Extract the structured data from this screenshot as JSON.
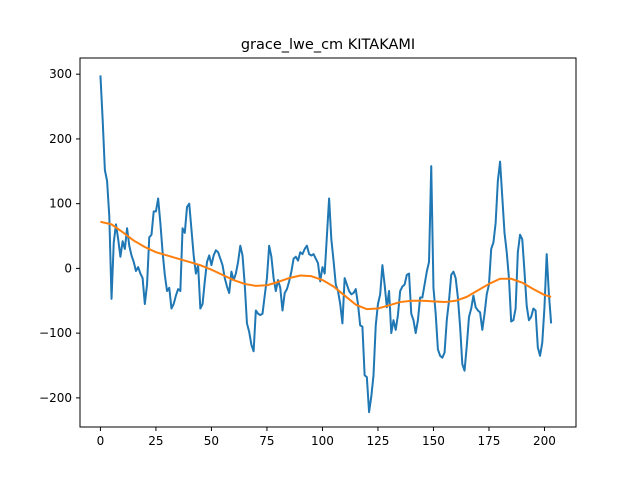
{
  "chart_data": {
    "type": "line",
    "title": "grace_lwe_cm KITAKAMI",
    "xlabel": "",
    "ylabel": "",
    "xlim": [
      -9.2,
      214.2
    ],
    "ylim": [
      -245,
      325
    ],
    "grid": false,
    "legend": "none",
    "x_ticks": [
      0,
      25,
      50,
      75,
      100,
      125,
      150,
      175,
      200
    ],
    "y_ticks": [
      -200,
      -100,
      0,
      100,
      200,
      300
    ],
    "series": [
      {
        "color": "#1f77b4",
        "x": [
          0,
          1,
          2,
          3,
          4,
          5,
          6,
          7,
          8,
          9,
          10,
          11,
          12,
          13,
          14,
          15,
          16,
          17,
          18,
          19,
          20,
          21,
          22,
          23,
          24,
          25,
          26,
          27,
          28,
          29,
          30,
          31,
          32,
          33,
          34,
          35,
          36,
          37,
          38,
          39,
          40,
          41,
          42,
          43,
          44,
          45,
          46,
          47,
          48,
          49,
          50,
          51,
          52,
          53,
          54,
          55,
          56,
          57,
          58,
          59,
          60,
          61,
          62,
          63,
          64,
          65,
          66,
          67,
          68,
          69,
          70,
          71,
          72,
          73,
          74,
          75,
          76,
          77,
          78,
          79,
          80,
          81,
          82,
          83,
          84,
          85,
          86,
          87,
          88,
          89,
          90,
          91,
          92,
          93,
          94,
          95,
          96,
          97,
          98,
          99,
          100,
          101,
          102,
          103,
          104,
          105,
          106,
          107,
          108,
          109,
          110,
          111,
          112,
          113,
          114,
          115,
          116,
          117,
          118,
          119,
          120,
          121,
          122,
          123,
          124,
          125,
          126,
          127,
          128,
          129,
          130,
          131,
          132,
          133,
          134,
          135,
          136,
          137,
          138,
          139,
          140,
          141,
          142,
          143,
          144,
          145,
          146,
          147,
          148,
          149,
          150,
          151,
          152,
          153,
          154,
          155,
          156,
          157,
          158,
          159,
          160,
          161,
          162,
          163,
          164,
          165,
          166,
          167,
          168,
          169,
          170,
          171,
          172,
          173,
          174,
          175,
          176,
          177,
          178,
          179,
          180,
          181,
          182,
          183,
          184,
          185,
          186,
          187,
          188,
          189,
          190,
          191,
          192,
          193,
          194,
          195,
          196,
          197,
          198,
          199,
          200,
          201,
          202,
          203
        ],
        "y": [
          298,
          230,
          152,
          135,
          80,
          -47,
          40,
          68,
          45,
          18,
          42,
          30,
          62,
          35,
          20,
          10,
          -4,
          2,
          -8,
          -15,
          -55,
          -25,
          48,
          52,
          88,
          88,
          108,
          70,
          25,
          -10,
          -35,
          -30,
          -62,
          -55,
          -42,
          -32,
          -35,
          62,
          55,
          95,
          100,
          60,
          20,
          -8,
          5,
          -62,
          -55,
          -20,
          10,
          20,
          5,
          20,
          28,
          25,
          15,
          5,
          -15,
          -28,
          -38,
          -5,
          -18,
          -8,
          10,
          35,
          20,
          -25,
          -85,
          -98,
          -118,
          -128,
          -65,
          -70,
          -72,
          -70,
          -42,
          -15,
          35,
          18,
          -15,
          -35,
          -18,
          -30,
          -65,
          -38,
          -32,
          -20,
          -5,
          15,
          18,
          12,
          25,
          22,
          30,
          35,
          22,
          20,
          22,
          15,
          8,
          -20,
          2,
          -8,
          50,
          108,
          45,
          12,
          -25,
          -35,
          -55,
          -85,
          -15,
          -25,
          -35,
          -40,
          -38,
          -32,
          -55,
          -88,
          -90,
          -165,
          -168,
          -222,
          -198,
          -165,
          -88,
          -55,
          -40,
          5,
          -25,
          -60,
          -35,
          -100,
          -80,
          -95,
          -72,
          -35,
          -28,
          -25,
          -10,
          -8,
          -70,
          -80,
          -100,
          -80,
          -45,
          -45,
          -25,
          -5,
          10,
          158,
          -30,
          -70,
          -125,
          -135,
          -138,
          -130,
          -80,
          -50,
          -10,
          -5,
          -15,
          -45,
          -90,
          -148,
          -158,
          -120,
          -75,
          -62,
          -42,
          -60,
          -65,
          -68,
          -95,
          -70,
          -40,
          -25,
          30,
          40,
          70,
          135,
          165,
          110,
          55,
          25,
          -15,
          -82,
          -80,
          -62,
          25,
          52,
          45,
          -5,
          -58,
          -80,
          -75,
          -62,
          -65,
          -122,
          -135,
          -115,
          -60,
          22,
          -40,
          -85
        ]
      },
      {
        "color": "#ff7f0e",
        "x": [
          0,
          5,
          10,
          15,
          20,
          25,
          30,
          35,
          40,
          45,
          50,
          55,
          60,
          65,
          70,
          75,
          80,
          85,
          90,
          95,
          100,
          105,
          110,
          115,
          120,
          125,
          130,
          135,
          140,
          145,
          150,
          155,
          160,
          165,
          170,
          175,
          180,
          185,
          190,
          195,
          200,
          203
        ],
        "y": [
          72,
          68,
          56,
          43,
          33,
          25,
          20,
          15,
          10,
          5,
          -2,
          -10,
          -18,
          -24,
          -27,
          -26,
          -21,
          -15,
          -11,
          -12,
          -18,
          -28,
          -42,
          -56,
          -63,
          -62,
          -57,
          -52,
          -50,
          -50,
          -51,
          -52,
          -50,
          -44,
          -34,
          -24,
          -16,
          -16,
          -22,
          -32,
          -41,
          -44
        ]
      }
    ]
  }
}
